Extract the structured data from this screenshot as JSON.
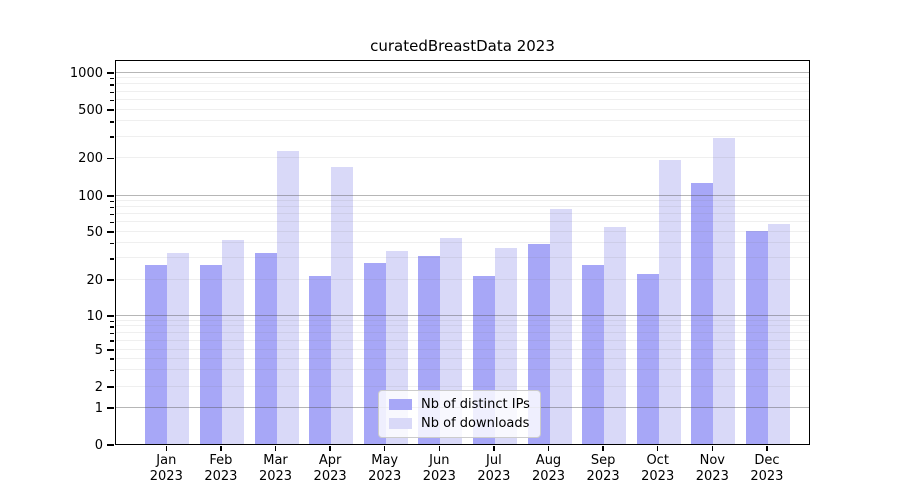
{
  "chart_data": {
    "type": "bar",
    "title": "curatedBreastData 2023",
    "months": [
      "Jan",
      "Feb",
      "Mar",
      "Apr",
      "May",
      "Jun",
      "Jul",
      "Aug",
      "Sep",
      "Oct",
      "Nov",
      "Dec"
    ],
    "year": "2023",
    "series": [
      {
        "name": "Nb of distinct IPs",
        "color": "#a7a7f7",
        "values": [
          26,
          26,
          33,
          21,
          27,
          31,
          21,
          39,
          26,
          22,
          126,
          50
        ]
      },
      {
        "name": "Nb of downloads",
        "color": "#d9d9f8",
        "values": [
          33,
          42,
          225,
          167,
          34,
          44,
          36,
          77,
          54,
          192,
          287,
          57
        ]
      }
    ],
    "yscale": "symlog",
    "yticks": [
      0,
      1,
      2,
      5,
      10,
      20,
      50,
      100,
      200,
      500,
      1000
    ],
    "ytick_labels": [
      "0",
      "1",
      "2",
      "5",
      "10",
      "20",
      "50",
      "100",
      "200",
      "500",
      "1000"
    ],
    "yticks_minor": [
      3,
      4,
      6,
      7,
      8,
      9,
      30,
      40,
      60,
      70,
      80,
      90,
      300,
      400,
      600,
      700,
      800,
      900
    ],
    "ylim": [
      0,
      1300
    ],
    "xlabel": "",
    "ylabel": "",
    "grid": "horizontal, drawn over bars",
    "legend_position": "lower-center"
  },
  "style": {
    "background": "#ffffff",
    "axis_color": "#000000",
    "text_color": "#000000",
    "grid_major_color": "#9a9a9a",
    "grid_minor_color": "#e9e9e9",
    "legend_border_color": "#cccccc"
  }
}
